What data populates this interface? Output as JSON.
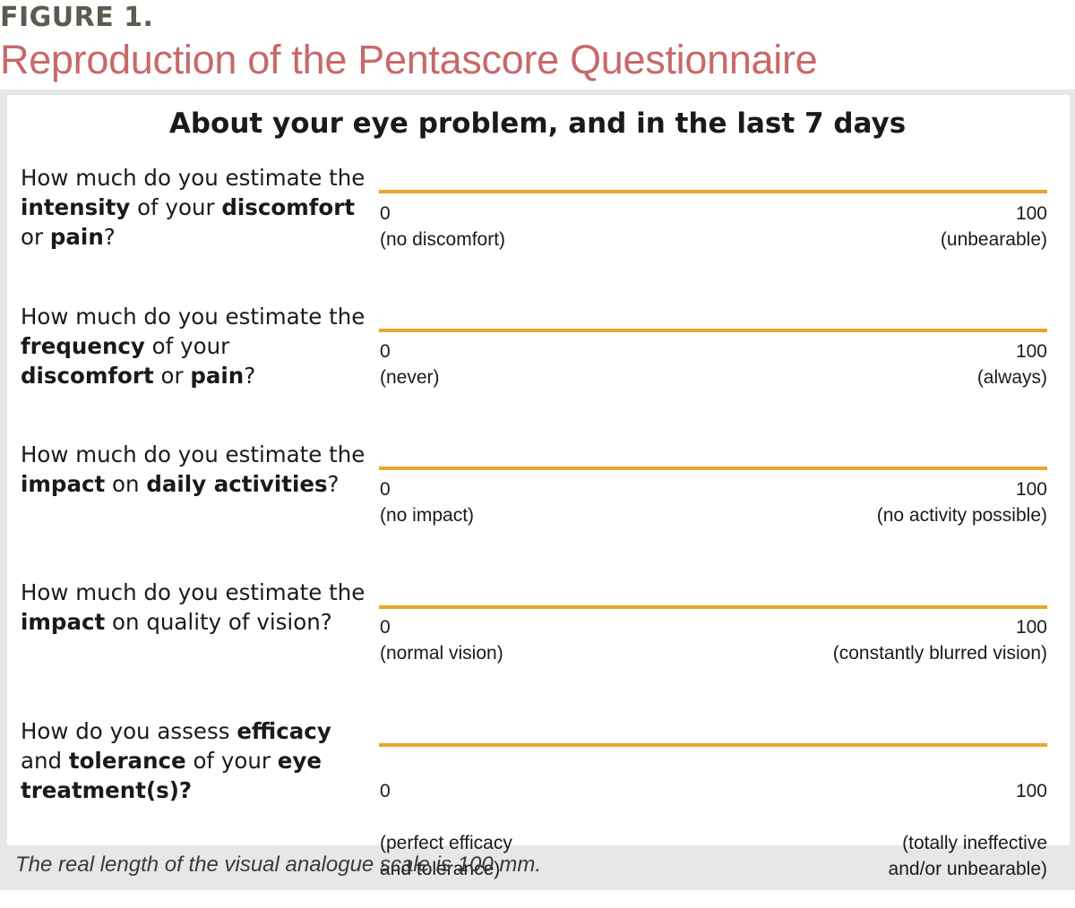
{
  "figure": {
    "label": "FIGURE 1.",
    "title": "Reproduction of the Pentascore Questionnaire"
  },
  "questionnaire": {
    "heading": "About your eye problem, and in the last 7 days",
    "questions": [
      {
        "parts": [
          {
            "text": "How much do you estimate the "
          },
          {
            "text": "intensity",
            "bold": true
          },
          {
            "text": " of your "
          },
          {
            "text": "discomfort",
            "bold": true
          },
          {
            "text": " or "
          },
          {
            "text": "pain",
            "bold": true
          },
          {
            "text": "?"
          }
        ],
        "min_value": "0",
        "min_label": "(no discomfort)",
        "max_value": "100",
        "max_label": "(unbearable)"
      },
      {
        "parts": [
          {
            "text": "How much do you estimate the "
          },
          {
            "text": "frequency",
            "bold": true
          },
          {
            "text": " of your "
          },
          {
            "text": "discomfort",
            "bold": true
          },
          {
            "text": " or "
          },
          {
            "text": "pain",
            "bold": true
          },
          {
            "text": "?"
          }
        ],
        "min_value": "0",
        "min_label": "(never)",
        "max_value": "100",
        "max_label": "(always)"
      },
      {
        "parts": [
          {
            "text": "How much do you estimate the "
          },
          {
            "text": "impact",
            "bold": true
          },
          {
            "text": " on "
          },
          {
            "text": "daily activities",
            "bold": true
          },
          {
            "text": "?"
          }
        ],
        "min_value": "0",
        "min_label": "(no impact)",
        "max_value": "100",
        "max_label": "(no activity possible)"
      },
      {
        "parts": [
          {
            "text": "How much do you estimate the "
          },
          {
            "text": "impact",
            "bold": true
          },
          {
            "text": " on quality of vision?"
          }
        ],
        "min_value": "0",
        "min_label": "(normal vision)",
        "max_value": "100",
        "max_label": "(constantly blurred vision)"
      },
      {
        "parts": [
          {
            "text": "How do you assess "
          },
          {
            "text": "efficacy",
            "bold": true
          },
          {
            "text": " and "
          },
          {
            "text": "tolerance",
            "bold": true
          },
          {
            "text": " of your "
          },
          {
            "text": "eye treatment(s)?",
            "bold": true
          }
        ],
        "min_value": "0",
        "min_label": "(perfect efficacy\nand tolerance)",
        "max_value": "100",
        "max_label": "(totally ineffective\nand/or unbearable)"
      }
    ]
  },
  "footnote": "The real length of the visual analogue scale is 100 mm.",
  "colors": {
    "title": "#c8696a",
    "figure_label": "#5e5a50",
    "scale_line": "#e9a62a",
    "panel_border": "#e7e7e7"
  }
}
